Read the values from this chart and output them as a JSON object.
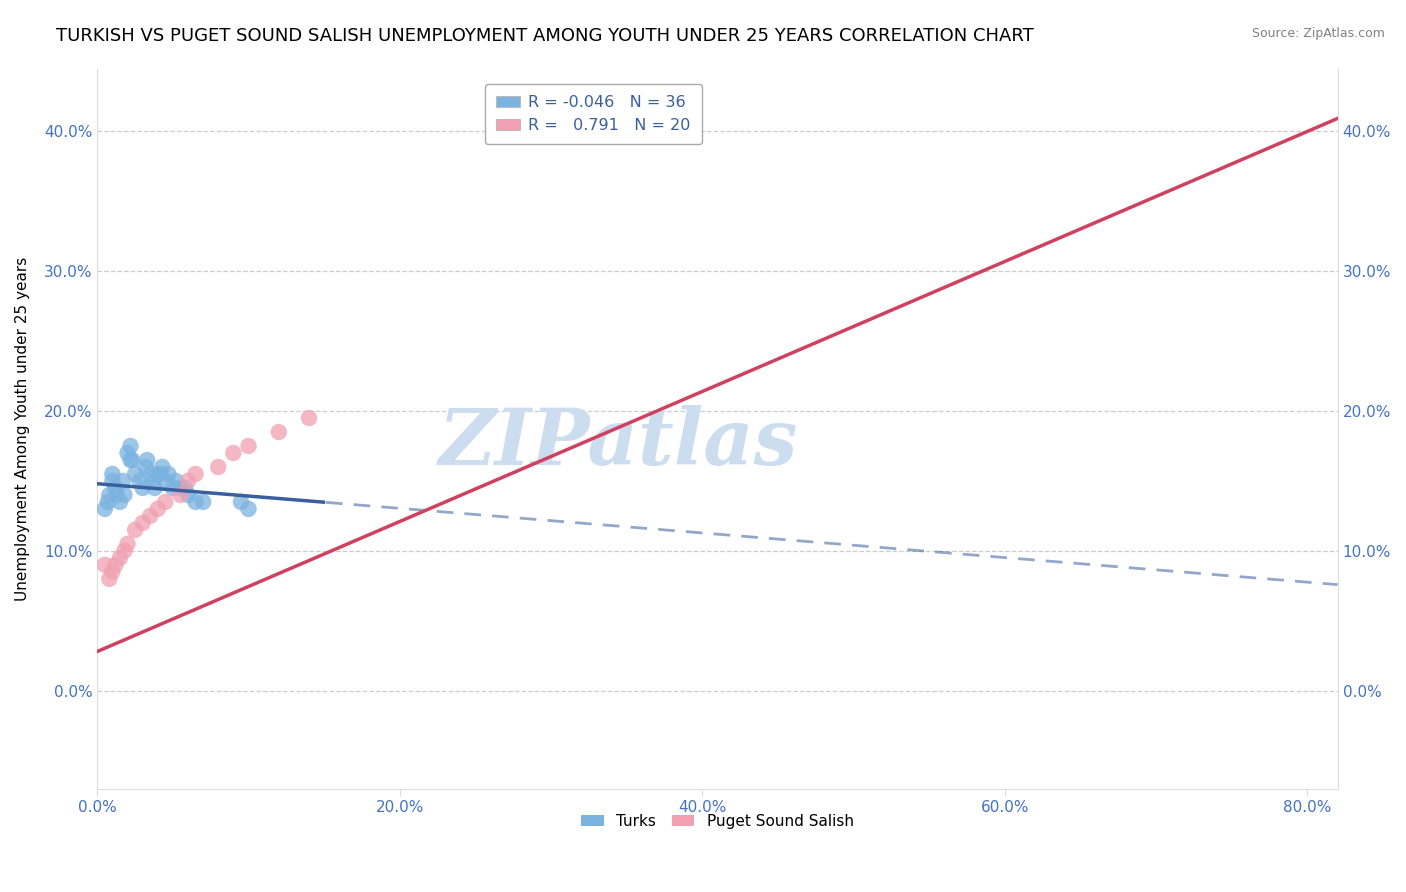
{
  "title": "TURKISH VS PUGET SOUND SALISH UNEMPLOYMENT AMONG YOUTH UNDER 25 YEARS CORRELATION CHART",
  "source": "Source: ZipAtlas.com",
  "ylabel": "Unemployment Among Youth under 25 years",
  "xlim": [
    0.0,
    0.82
  ],
  "ylim": [
    -0.07,
    0.445
  ],
  "xticks": [
    0.0,
    0.2,
    0.4,
    0.6,
    0.8
  ],
  "yticks": [
    0.0,
    0.1,
    0.2,
    0.3,
    0.4
  ],
  "xtick_labels": [
    "0.0%",
    "20.0%",
    "40.0%",
    "60.0%",
    "80.0%"
  ],
  "ytick_labels": [
    "0.0%",
    "10.0%",
    "20.0%",
    "30.0%",
    "40.0%"
  ],
  "turks_x": [
    0.005,
    0.007,
    0.008,
    0.01,
    0.01,
    0.012,
    0.013,
    0.015,
    0.017,
    0.018,
    0.02,
    0.022,
    0.022,
    0.023,
    0.025,
    0.028,
    0.03,
    0.032,
    0.033,
    0.035,
    0.037,
    0.038,
    0.04,
    0.042,
    0.043,
    0.045,
    0.047,
    0.05,
    0.052,
    0.055,
    0.058,
    0.06,
    0.065,
    0.07,
    0.095,
    0.1
  ],
  "turks_y": [
    0.13,
    0.135,
    0.14,
    0.15,
    0.155,
    0.145,
    0.14,
    0.135,
    0.15,
    0.14,
    0.17,
    0.175,
    0.165,
    0.165,
    0.155,
    0.15,
    0.145,
    0.16,
    0.165,
    0.155,
    0.15,
    0.145,
    0.155,
    0.155,
    0.16,
    0.15,
    0.155,
    0.145,
    0.15,
    0.145,
    0.145,
    0.14,
    0.135,
    0.135,
    0.135,
    0.13
  ],
  "salish_x": [
    0.005,
    0.008,
    0.01,
    0.012,
    0.015,
    0.018,
    0.02,
    0.025,
    0.03,
    0.035,
    0.04,
    0.045,
    0.055,
    0.06,
    0.065,
    0.08,
    0.09,
    0.1,
    0.12,
    0.14
  ],
  "salish_y": [
    0.09,
    0.08,
    0.085,
    0.09,
    0.095,
    0.1,
    0.105,
    0.115,
    0.12,
    0.125,
    0.13,
    0.135,
    0.14,
    0.15,
    0.155,
    0.16,
    0.17,
    0.175,
    0.185,
    0.195
  ],
  "turks_color": "#7ab3e0",
  "salish_color": "#f0a0b0",
  "turks_line_color": "#3a5f9e",
  "salish_line_color": "#d04060",
  "watermark_text": "ZIPatlas",
  "watermark_color": "#ccddf0",
  "background_color": "#ffffff",
  "grid_color": "#cccccc",
  "title_fontsize": 13,
  "tick_fontsize": 11,
  "legend_color": "#3a5f9e",
  "turks_R": -0.046,
  "turks_N": 36,
  "salish_R": 0.791,
  "salish_N": 20,
  "turks_label": "Turks",
  "salish_label": "Puget Sound Salish",
  "turks_line_solid_end": 0.15,
  "salish_line_solid_end": 0.82,
  "turks_line_intercept": 0.148,
  "turks_line_slope": -0.088,
  "salish_line_intercept": 0.028,
  "salish_line_slope": 0.465
}
